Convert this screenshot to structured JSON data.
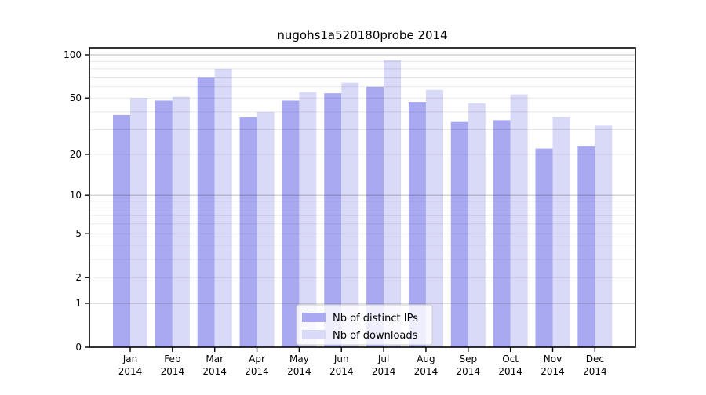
{
  "title": "nugohs1a520180probe 2014",
  "chart_data": {
    "type": "bar",
    "title": "nugohs1a520180probe 2014",
    "scale": "log1p",
    "grid": "on",
    "legend_position": "bottom-center",
    "year": "2014",
    "categories": [
      "Jan",
      "Feb",
      "Mar",
      "Apr",
      "May",
      "Jun",
      "Jul",
      "Aug",
      "Sep",
      "Oct",
      "Nov",
      "Dec"
    ],
    "series": [
      {
        "name": "Nb of distinct IPs",
        "color": "#a9a9f2",
        "values": [
          38,
          48,
          70,
          37,
          48,
          54,
          60,
          47,
          34,
          35,
          22,
          23
        ]
      },
      {
        "name": "Nb of downloads",
        "color": "#d9d9f8",
        "values": [
          50,
          51,
          80,
          40,
          55,
          64,
          92,
          57,
          46,
          53,
          37,
          32
        ]
      }
    ],
    "yticks": [
      100,
      50,
      20,
      10,
      5,
      2,
      1,
      0
    ],
    "minor_gridlines": [
      2,
      3,
      4,
      5,
      6,
      7,
      8,
      9,
      20,
      30,
      40,
      50,
      60,
      70,
      80,
      90
    ],
    "major_gridlines": [
      1,
      10,
      100
    ],
    "ylim": [
      0,
      113
    ],
    "colors": {
      "spine": "#000000",
      "major_grid": "rgba(0,0,0,0.22)",
      "minor_grid": "rgba(0,0,0,0.09)",
      "legend_border": "#cccccc"
    }
  }
}
